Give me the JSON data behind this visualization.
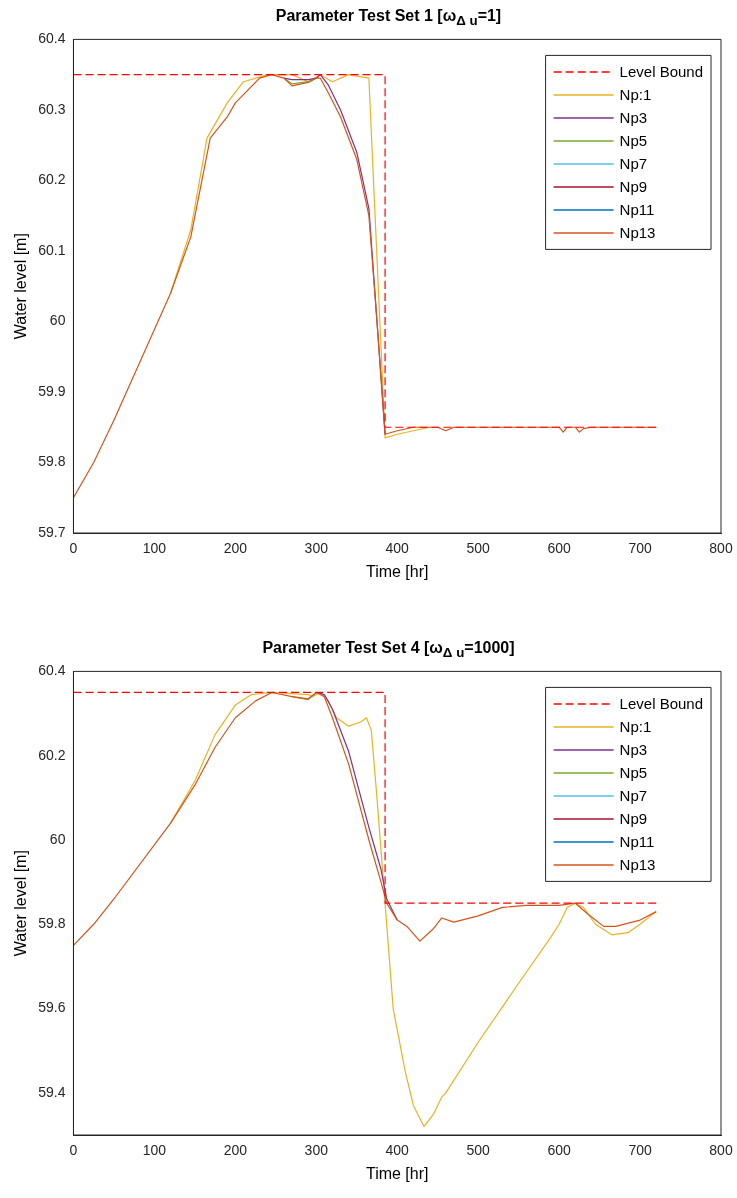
{
  "chart_data": [
    {
      "type": "line",
      "title": "Parameter Test Set 1 [ω$_{Δ u}$=1]",
      "xlabel": "Time [hr]",
      "ylabel": "Water level [m]",
      "xlim": [
        0,
        800
      ],
      "xticks": [
        0,
        100,
        200,
        300,
        400,
        500,
        600,
        700,
        800
      ],
      "ylim": [
        59.7,
        60.4
      ],
      "yticks": [
        59.7,
        59.8,
        59.9,
        60,
        60.1,
        60.2,
        60.3,
        60.4
      ],
      "legend": "top right",
      "marker": "none",
      "series": [
        {
          "name": "Level Bound",
          "color": "#ff0000",
          "line_style": "dashed",
          "x": [
            0,
            385,
            385,
            720
          ],
          "values": [
            60.35,
            60.35,
            59.85,
            59.85
          ]
        },
        {
          "name": "Np:1",
          "color": "#edb120",
          "x": [
            120,
            145,
            165,
            190,
            210,
            240,
            270,
            290,
            305,
            320,
            340,
            365,
            385,
            400,
            420,
            440
          ],
          "values": [
            60.04,
            60.13,
            60.26,
            60.31,
            60.34,
            60.35,
            60.35,
            60.34,
            60.35,
            60.34,
            60.35,
            60.345,
            59.835,
            59.84,
            59.845,
            59.85
          ]
        },
        {
          "name": "Np3",
          "color": "#7e2f8e",
          "x": [
            260,
            270,
            290,
            300,
            305,
            315,
            330,
            350,
            365,
            375,
            385
          ],
          "values": [
            60.345,
            60.343,
            60.343,
            60.345,
            60.35,
            60.335,
            60.3,
            60.24,
            60.16,
            60.0,
            59.84
          ]
        },
        {
          "name": "Np5",
          "color": "#77ac30",
          "x": [
            260,
            270,
            290,
            300
          ],
          "values": [
            60.345,
            60.337,
            60.34,
            60.345
          ]
        },
        {
          "name": "Np7",
          "color": "#4dbeee"
        },
        {
          "name": "Np9",
          "color": "#a2142f"
        },
        {
          "name": "Np11",
          "color": "#0072bd"
        },
        {
          "name": "Np13",
          "color": "#d95319",
          "x": [
            0,
            25,
            50,
            120,
            145,
            169,
            190,
            200,
            230,
            245,
            260,
            270,
            290,
            300,
            305,
            315,
            330,
            350,
            365,
            375,
            385,
            400,
            420,
            450,
            460,
            470,
            550,
            600,
            605,
            610,
            620,
            625,
            630,
            640,
            720
          ],
          "values": [
            59.75,
            59.8,
            59.86,
            60.04,
            60.12,
            60.26,
            60.29,
            60.31,
            60.345,
            60.35,
            60.345,
            60.334,
            60.339,
            60.345,
            60.345,
            60.324,
            60.29,
            60.23,
            60.15,
            60.0,
            59.84,
            59.845,
            59.85,
            59.85,
            59.845,
            59.85,
            59.85,
            59.85,
            59.843,
            59.85,
            59.85,
            59.843,
            59.848,
            59.85,
            59.85
          ]
        }
      ]
    },
    {
      "type": "line",
      "title": "Parameter Test Set 4 [ω$_{Δ u}$=1000]",
      "xlabel": "Time [hr]",
      "ylabel": "Water level [m]",
      "xlim": [
        0,
        800
      ],
      "xticks": [
        0,
        100,
        200,
        300,
        400,
        500,
        600,
        700,
        800
      ],
      "ylim": [
        59.3,
        60.4
      ],
      "yticks": [
        59.4,
        59.6,
        59.8,
        60,
        60.2,
        60.4
      ],
      "legend": "top right",
      "marker": "none",
      "series": [
        {
          "name": "Level Bound",
          "color": "#ff0000",
          "line_style": "dashed",
          "x": [
            0,
            385,
            385,
            720
          ],
          "values": [
            60.35,
            60.35,
            59.85,
            59.85
          ]
        },
        {
          "name": "Np:1",
          "color": "#edb120",
          "x": [
            120,
            150,
            175,
            200,
            220,
            245,
            290,
            295,
            305,
            315,
            325,
            340,
            355,
            362,
            368,
            375,
            385,
            395,
            410,
            420,
            433,
            445,
            455,
            460,
            500,
            550,
            590,
            600,
            610,
            620,
            630,
            645,
            665,
            685,
            700,
            720
          ],
          "values": [
            60.04,
            60.14,
            60.25,
            60.32,
            60.345,
            60.35,
            60.345,
            60.34,
            60.35,
            60.33,
            60.29,
            60.27,
            60.28,
            60.29,
            60.26,
            60.1,
            59.85,
            59.6,
            59.45,
            59.37,
            59.32,
            59.35,
            59.39,
            59.4,
            59.52,
            59.66,
            59.77,
            59.8,
            59.84,
            59.85,
            59.84,
            59.8,
            59.775,
            59.78,
            59.8,
            59.83
          ]
        },
        {
          "name": "Np3",
          "color": "#7e2f8e",
          "x": [
            300,
            310,
            320,
            340,
            365,
            380,
            387,
            400
          ],
          "values": [
            60.35,
            60.345,
            60.31,
            60.21,
            60.03,
            59.93,
            59.86,
            59.81
          ]
        },
        {
          "name": "Np5",
          "color": "#77ac30",
          "x": [
            270,
            290,
            300
          ],
          "values": [
            60.34,
            60.333,
            60.35
          ]
        },
        {
          "name": "Np7",
          "color": "#4dbeee"
        },
        {
          "name": "Np9",
          "color": "#a2142f"
        },
        {
          "name": "Np11",
          "color": "#0072bd"
        },
        {
          "name": "Np13",
          "color": "#d95319",
          "x": [
            0,
            25,
            50,
            120,
            150,
            175,
            200,
            225,
            245,
            270,
            290,
            300,
            310,
            320,
            340,
            365,
            380,
            387,
            400,
            412,
            428,
            445,
            455,
            470,
            500,
            530,
            560,
            600,
            620,
            635,
            655,
            670,
            700,
            720
          ],
          "values": [
            59.75,
            59.8,
            59.86,
            60.04,
            60.13,
            60.22,
            60.29,
            60.33,
            60.35,
            60.34,
            60.335,
            60.35,
            60.34,
            60.29,
            60.18,
            60.0,
            59.9,
            59.85,
            59.81,
            59.795,
            59.76,
            59.79,
            59.815,
            59.805,
            59.82,
            59.84,
            59.845,
            59.845,
            59.85,
            59.825,
            59.795,
            59.795,
            59.81,
            59.83
          ]
        }
      ]
    }
  ]
}
